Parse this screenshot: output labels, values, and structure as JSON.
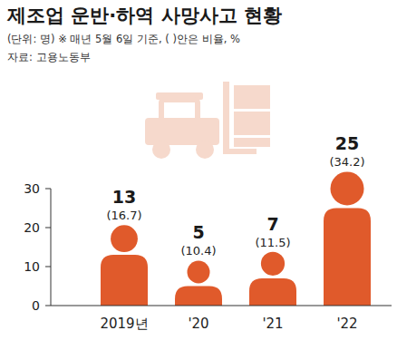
{
  "chart_data": {
    "type": "bar",
    "title": "제조업 운반·하역 사망사고 현황",
    "subtitle": "(단위: 명) ※ 매년 5월 6일 기준, ( )안은 비율, %",
    "source": "자료: 고용노동부",
    "categories": [
      "2019년",
      "'20",
      "'21",
      "'22"
    ],
    "values": [
      13,
      5,
      7,
      25
    ],
    "ratio_labels": [
      "(16.7)",
      "(10.4)",
      "(11.5)",
      "(34.2)"
    ],
    "color": "#e05a2b",
    "ylim": [
      0,
      30
    ],
    "yticks": [
      0,
      10,
      20,
      30
    ],
    "grid": false,
    "data_labels": true
  }
}
